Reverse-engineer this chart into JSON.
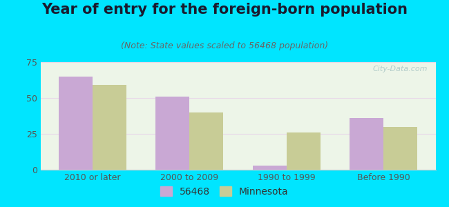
{
  "title": "Year of entry for the foreign-born population",
  "subtitle": "(Note: State values scaled to 56468 population)",
  "categories": [
    "2010 or later",
    "2000 to 2009",
    "1990 to 1999",
    "Before 1990"
  ],
  "values_56468": [
    65,
    51,
    3,
    36
  ],
  "values_minnesota": [
    59,
    40,
    26,
    30
  ],
  "color_56468": "#c9a8d4",
  "color_minnesota": "#c8cc96",
  "ylim": [
    0,
    75
  ],
  "yticks": [
    0,
    25,
    50,
    75
  ],
  "background_outer": "#00e5ff",
  "background_inner_top": "#e8f5e8",
  "background_inner_bottom": "#f8fff8",
  "bar_width": 0.35,
  "legend_label_56468": "56468",
  "legend_label_minnesota": "Minnesota",
  "title_fontsize": 15,
  "subtitle_fontsize": 9,
  "tick_fontsize": 9,
  "legend_fontsize": 10,
  "title_color": "#1a1a2e",
  "subtitle_color": "#666666",
  "tick_color": "#555555"
}
